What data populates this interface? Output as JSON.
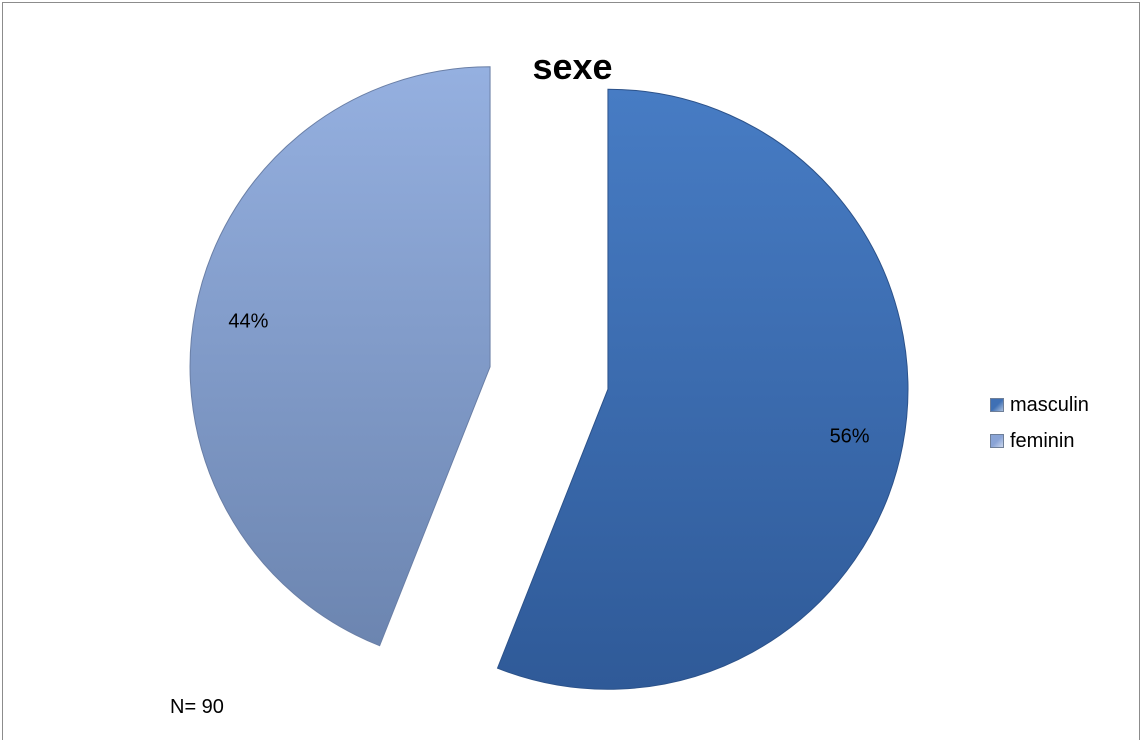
{
  "chart_data": {
    "type": "pie",
    "title": "sexe",
    "categories": [
      "masculin",
      "feminin"
    ],
    "values": [
      56,
      44
    ],
    "value_labels": [
      "56%",
      "44%"
    ],
    "colors": [
      "#3f70b5",
      "#8aa4d6"
    ],
    "exploded": true,
    "legend_position": "right",
    "footnote": "N= 90"
  }
}
